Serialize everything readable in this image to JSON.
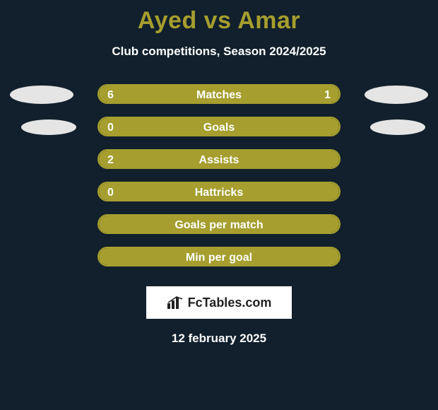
{
  "title": "Ayed vs Amar",
  "subtitle": "Club competitions, Season 2024/2025",
  "colors": {
    "background": "#11202c",
    "accent": "#a69e2e",
    "text": "#ffffff",
    "ellipse": "#e5e5e5",
    "logo_bg": "#ffffff",
    "logo_text": "#222222"
  },
  "bar_track": {
    "border_width": 2,
    "border_radius": 14,
    "height": 28,
    "left_inset": 138,
    "right_inset": 138
  },
  "typography": {
    "title_fontsize": 34,
    "title_weight": 800,
    "subtitle_fontsize": 17,
    "label_fontsize": 16,
    "value_fontsize": 16,
    "date_fontsize": 17
  },
  "rows": [
    {
      "label": "Matches",
      "left_value": "6",
      "right_value": "1",
      "left_pct": 80,
      "right_pct": 20,
      "show_left_ellipse": true,
      "show_right_ellipse": true,
      "ellipse_small": false,
      "fill_mode": "split"
    },
    {
      "label": "Goals",
      "left_value": "0",
      "right_value": "",
      "left_pct": 100,
      "right_pct": 0,
      "show_left_ellipse": true,
      "show_right_ellipse": true,
      "ellipse_small": true,
      "fill_mode": "full"
    },
    {
      "label": "Assists",
      "left_value": "2",
      "right_value": "",
      "left_pct": 100,
      "right_pct": 0,
      "show_left_ellipse": false,
      "show_right_ellipse": false,
      "ellipse_small": false,
      "fill_mode": "full"
    },
    {
      "label": "Hattricks",
      "left_value": "0",
      "right_value": "",
      "left_pct": 100,
      "right_pct": 0,
      "show_left_ellipse": false,
      "show_right_ellipse": false,
      "ellipse_small": false,
      "fill_mode": "full"
    },
    {
      "label": "Goals per match",
      "left_value": "",
      "right_value": "",
      "left_pct": 100,
      "right_pct": 0,
      "show_left_ellipse": false,
      "show_right_ellipse": false,
      "ellipse_small": false,
      "fill_mode": "full"
    },
    {
      "label": "Min per goal",
      "left_value": "",
      "right_value": "",
      "left_pct": 100,
      "right_pct": 0,
      "show_left_ellipse": false,
      "show_right_ellipse": false,
      "ellipse_small": false,
      "fill_mode": "full"
    }
  ],
  "logo": {
    "icon": "chart-bars-icon",
    "text": "FcTables.com"
  },
  "date": "12 february 2025"
}
